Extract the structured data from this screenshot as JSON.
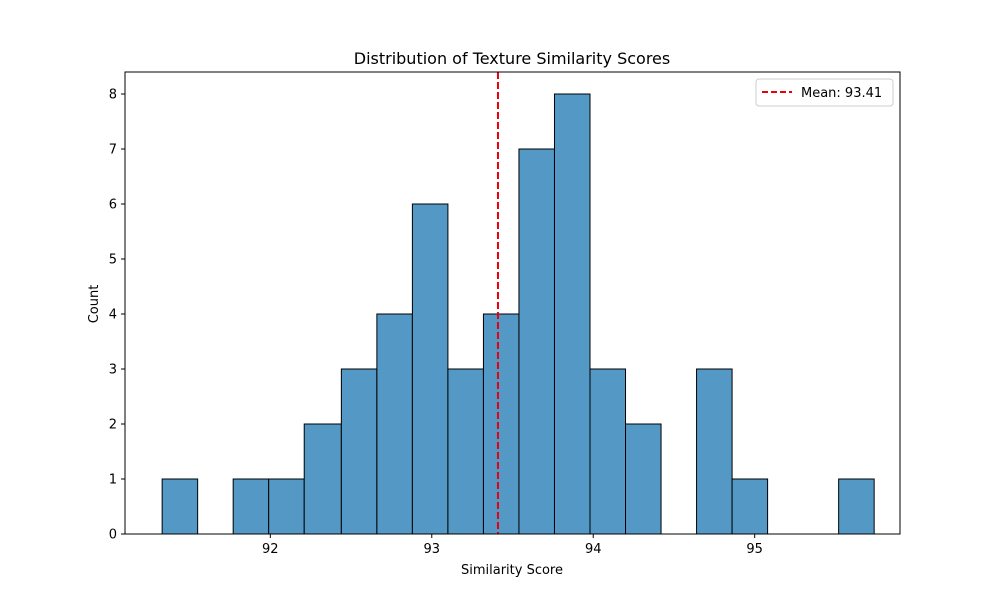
{
  "chart_data": {
    "type": "bar",
    "subtype": "histogram",
    "title": "Distribution of Texture Similarity Scores",
    "xlabel": "Similarity Score",
    "ylabel": "Count",
    "xlim": [
      91.1,
      95.9
    ],
    "ylim": [
      0,
      8.4
    ],
    "x_ticks": [
      92,
      93,
      94,
      95
    ],
    "y_ticks": [
      0,
      1,
      2,
      3,
      4,
      5,
      6,
      7,
      8
    ],
    "bin_edges": [
      91.33,
      91.55,
      91.77,
      91.99,
      92.21,
      92.44,
      92.66,
      92.88,
      93.1,
      93.32,
      93.54,
      93.76,
      93.98,
      94.2,
      94.42,
      94.64,
      94.86,
      95.08,
      95.3,
      95.52,
      95.74
    ],
    "counts": [
      1,
      0,
      1,
      1,
      2,
      3,
      4,
      6,
      3,
      4,
      7,
      8,
      3,
      2,
      0,
      3,
      1,
      0,
      0,
      1
    ],
    "bar_color": "#5498c6",
    "bar_edge_color": "#000000",
    "mean": 93.41,
    "mean_line_color": "#e8000b",
    "legend": {
      "position": "top-right",
      "label": "Mean: 93.41"
    }
  }
}
